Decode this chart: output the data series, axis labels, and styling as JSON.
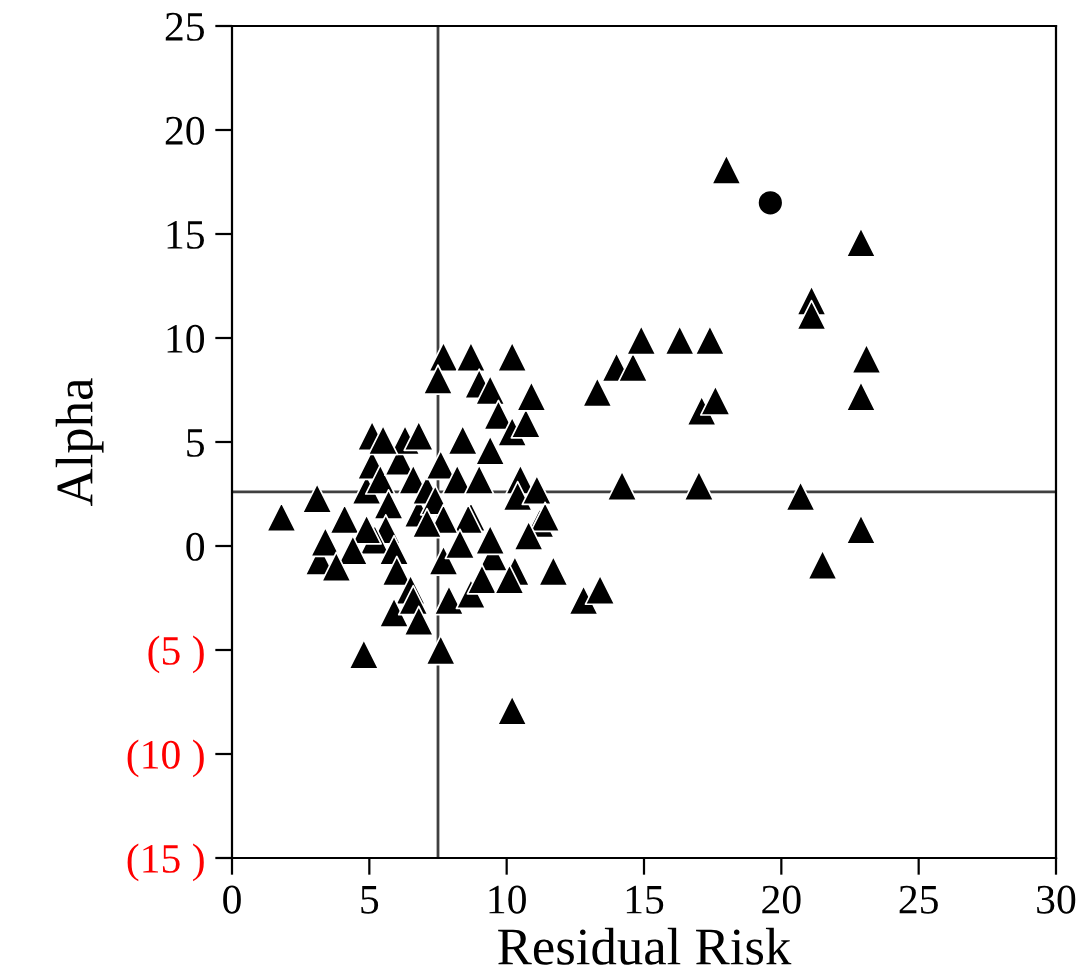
{
  "chart_data": {
    "type": "scatter",
    "xlabel": "Residual Risk",
    "ylabel": "Alpha",
    "xlim": [
      0,
      30
    ],
    "ylim": [
      -15,
      25
    ],
    "xticks": [
      0,
      5,
      10,
      15,
      20,
      25,
      30
    ],
    "yticks": [
      {
        "value": -15,
        "label": "(15 )"
      },
      {
        "value": -10,
        "label": "(10 )"
      },
      {
        "value": -5,
        "label": "(5 )"
      },
      0,
      5,
      10,
      15,
      20,
      25
    ],
    "grid": false,
    "legend": false,
    "ref_lines": [
      {
        "axis": "x",
        "value": 7.5,
        "color": "#404040"
      },
      {
        "axis": "y",
        "value": 2.6,
        "color": "#404040"
      }
    ],
    "series": [
      {
        "color": "#000000",
        "marker": "triangle",
        "x": [
          1.8,
          3.1,
          3.2,
          3.4,
          4.1,
          4.9,
          5.1,
          5.1,
          5.4,
          5.7,
          5.6,
          5.2,
          5.9,
          6.1,
          6.3,
          6.6,
          6.8,
          7.1,
          7.4,
          7.6,
          7.7,
          7.5,
          8.7,
          9.0,
          10.2,
          9.4,
          9.7,
          8.4,
          8.2,
          9.0,
          8.7,
          9.4,
          10.2,
          10.7,
          10.9,
          10.5,
          10.4,
          11.1,
          11.2,
          11.4,
          10.8,
          10.3,
          9.5,
          8.6,
          7.7,
          7.7,
          7.1,
          6.0,
          6.5,
          5.9,
          6.6,
          6.8,
          7.9,
          7.6,
          8.7,
          9.1,
          10.1,
          11.7,
          12.8,
          13.4,
          4.8,
          10.2,
          13.3,
          14.0,
          14.6,
          14.9,
          16.3,
          17.4,
          17.1,
          17.6,
          14.2,
          17.0,
          18.0,
          21.1,
          21.1,
          22.9,
          23.1,
          22.9,
          20.7,
          21.5,
          22.9,
          4.9,
          4.4,
          3.8,
          8.3,
          9.4,
          5.5,
          6.8
        ],
        "values": [
          1.4,
          2.3,
          -0.7,
          0.2,
          1.3,
          2.7,
          5.3,
          3.9,
          3.2,
          2.0,
          0.8,
          0.3,
          -0.2,
          4.1,
          5.1,
          3.2,
          1.6,
          2.7,
          2.2,
          3.9,
          9.1,
          8.0,
          9.1,
          7.8,
          9.1,
          7.5,
          6.3,
          5.1,
          3.2,
          3.2,
          1.4,
          4.6,
          5.5,
          5.9,
          7.2,
          3.2,
          2.4,
          2.7,
          1.1,
          1.4,
          0.5,
          -1.2,
          -0.5,
          1.3,
          1.3,
          -0.7,
          1.1,
          -1.2,
          -2.1,
          -3.2,
          -2.6,
          -3.6,
          -2.6,
          -5.0,
          -2.3,
          -1.6,
          -1.6,
          -1.2,
          -2.6,
          -2.1,
          -5.2,
          -7.9,
          7.4,
          8.6,
          8.6,
          9.9,
          9.9,
          9.9,
          6.5,
          7.0,
          2.9,
          2.9,
          18.1,
          11.8,
          11.1,
          14.6,
          9.0,
          7.2,
          2.4,
          -0.9,
          0.8,
          0.8,
          -0.2,
          -1.0,
          0.1,
          0.3,
          5.1,
          5.3
        ]
      },
      {
        "color": "#000000",
        "marker": "circle",
        "x": [
          19.6
        ],
        "values": [
          16.5
        ]
      }
    ]
  }
}
